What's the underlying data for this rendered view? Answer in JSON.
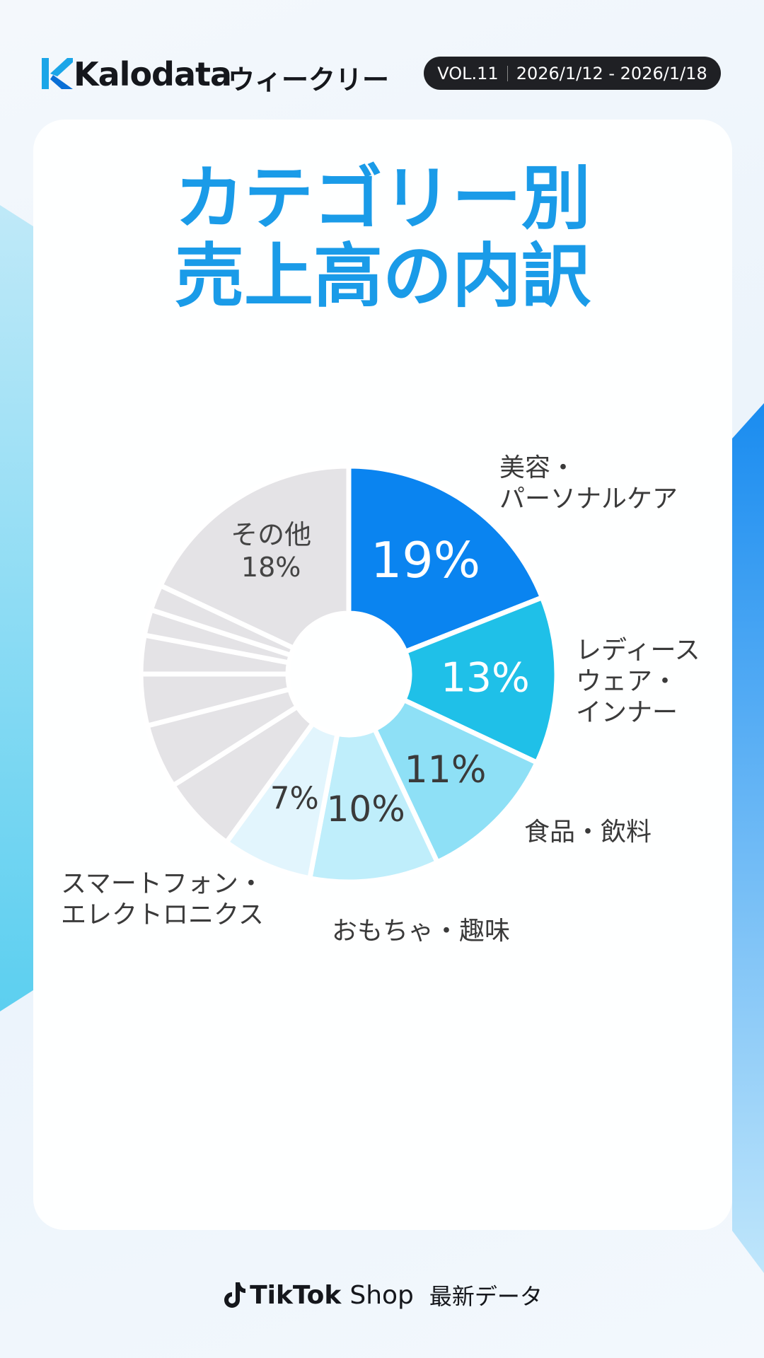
{
  "header": {
    "brand": "Kalodata",
    "subtitle": "ウィークリー",
    "volume": "VOL.11",
    "date_range": "2026/1/12 - 2026/1/18"
  },
  "chart_data": {
    "type": "donut",
    "title": "カテゴリー別\n売上高の内訳",
    "categories": [
      "美容・\nパーソナルケア",
      "レディース\nウェア・\nインナー",
      "食品・飲料",
      "おもちゃ・趣味",
      "スマートフォン・\nエレクトロニクス",
      null,
      null,
      null,
      null,
      null,
      null,
      "その他"
    ],
    "values": [
      19,
      13,
      11,
      10,
      7,
      6,
      5,
      4,
      3,
      2,
      2,
      18
    ],
    "value_labels": [
      "19%",
      "13%",
      "11%",
      "10%",
      "7%",
      null,
      null,
      null,
      null,
      null,
      null,
      "18%"
    ],
    "colors": [
      "#0a84f0",
      "#1fc0e8",
      "#8ee0f6",
      "#bfeefb",
      "#e2f5fd",
      "#e4e3e6",
      "#e4e3e6",
      "#e4e3e6",
      "#e4e3e6",
      "#e4e3e6",
      "#e4e3e6",
      "#e4e3e6"
    ]
  },
  "footer": {
    "brand": "TikTok",
    "shop": "Shop",
    "note": "最新データ"
  }
}
